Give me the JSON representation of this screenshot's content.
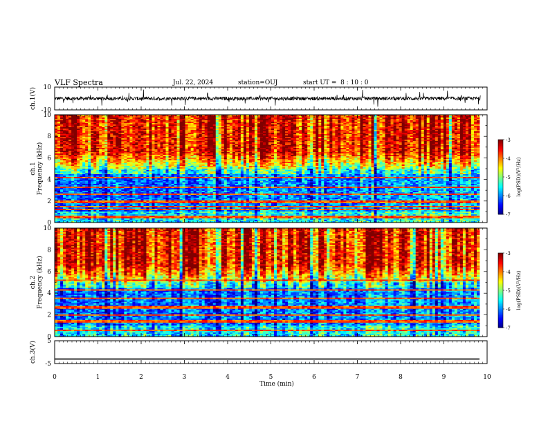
{
  "header": {
    "title": "VLF Spectra",
    "date": "Jul. 22, 2024",
    "station": "station=OUJ",
    "start": "start UT =  8 : 10 : 0"
  },
  "chart_data": [
    {
      "type": "line",
      "panel": "ch1-waveform",
      "ylabel": "ch.1(V)",
      "ylim": [
        -10,
        10
      ],
      "ytick_labels": [
        "10",
        "-10"
      ],
      "xlim": [
        0,
        10
      ],
      "description_values": {
        "baseline": 0,
        "typical_range": [
          -2,
          2
        ],
        "spike_range": [
          -10,
          10
        ]
      }
    },
    {
      "type": "heatmap",
      "panel": "ch1-spectrogram",
      "ylabel": "ch.1\nFrequency (kHz)",
      "ylim": [
        0,
        10
      ],
      "ytick_labels": [
        "0",
        "2",
        "4",
        "6",
        "8",
        "10"
      ],
      "xlim": [
        0,
        9.85
      ],
      "colorbar": {
        "label": "log(PSD)(V²/Hz)",
        "range": [
          -7,
          -3
        ],
        "tick_labels": [
          "-3",
          "-4",
          "-5",
          "-6",
          "-7"
        ]
      },
      "features": {
        "high_psd_above_khz": 5,
        "low_psd_band_khz": [
          1,
          4
        ],
        "narrowband_lines_khz": [
          0.5,
          1.2,
          1.5,
          1.9,
          2.6,
          3.3,
          4.2
        ]
      }
    },
    {
      "type": "heatmap",
      "panel": "ch2-spectrogram",
      "ylabel": "ch.2\nFrequency (kHz)",
      "ylim": [
        0,
        10
      ],
      "ytick_labels": [
        "0",
        "2",
        "4",
        "6",
        "8",
        "10"
      ],
      "xlim": [
        0,
        9.85
      ],
      "colorbar": {
        "label": "log(PSD)(V²/Hz)",
        "range": [
          -7,
          -3
        ],
        "tick_labels": [
          "-3",
          "-4",
          "-5",
          "-6",
          "-7"
        ]
      },
      "features": {
        "high_psd_above_khz": 5,
        "low_psd_band_khz": [
          1,
          4
        ],
        "narrowband_lines_khz": [
          0.6,
          1.4,
          2.0,
          2.7,
          3.5,
          4.3,
          5.2
        ]
      }
    },
    {
      "type": "line",
      "panel": "ch3-waveform",
      "ylabel": "ch.3(V)",
      "ylim": [
        -5,
        5
      ],
      "ytick_labels": [
        "5",
        "-5"
      ],
      "xlim": [
        0,
        9.85
      ],
      "values_constant": -3.0
    }
  ],
  "x_axis": {
    "label": "Time (min)",
    "tick_labels": [
      "0",
      "1",
      "2",
      "3",
      "4",
      "5",
      "6",
      "7",
      "8",
      "9",
      "10"
    ]
  }
}
